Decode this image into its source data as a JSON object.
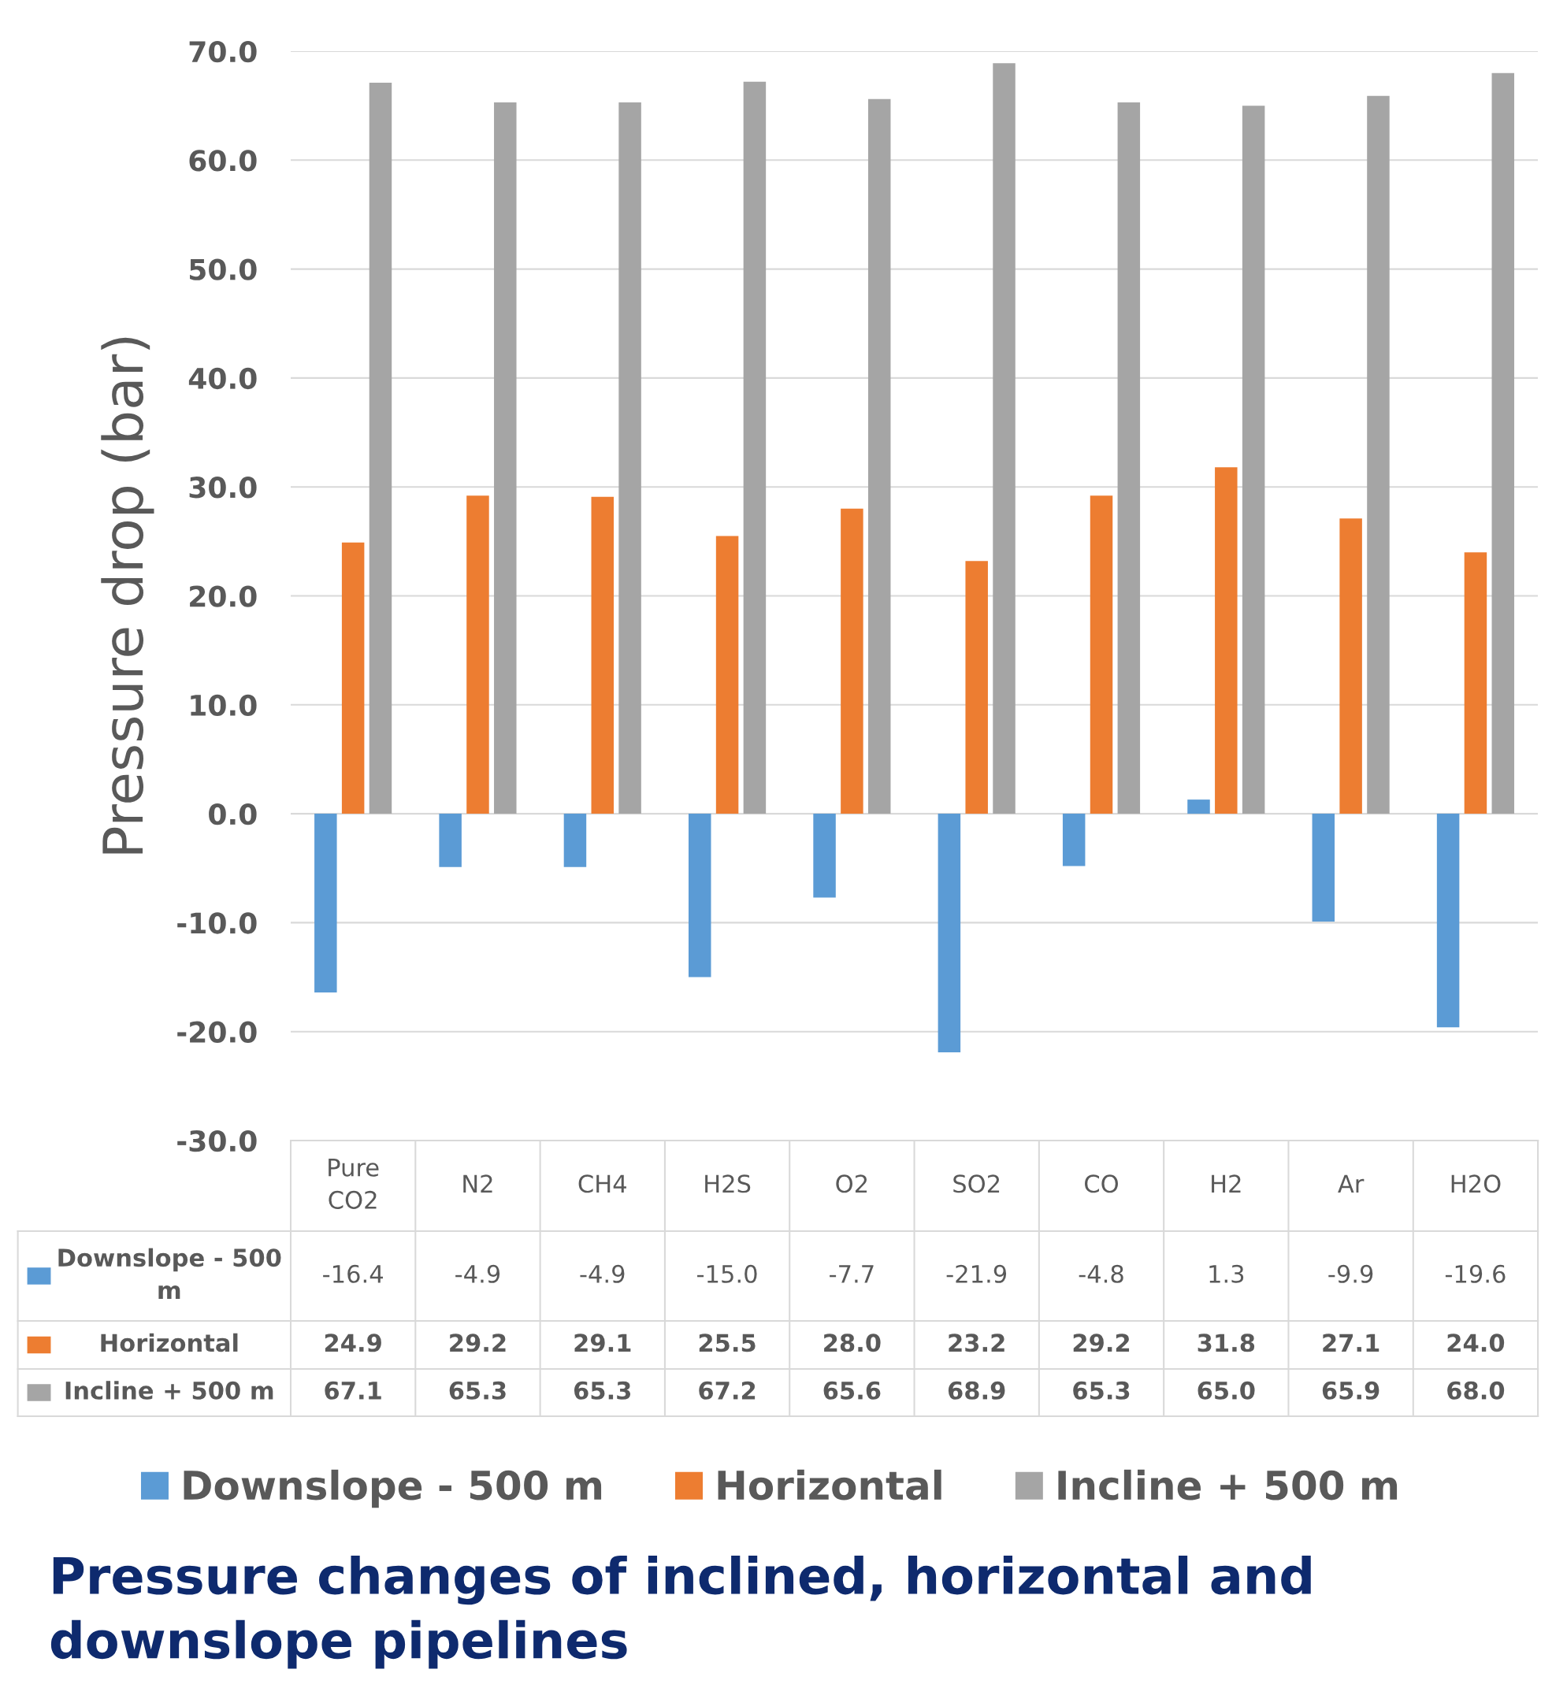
{
  "chart_data": {
    "type": "bar",
    "title": "Pressure changes of inclined, horizontal and downslope pipelines",
    "ylabel": "Pressure drop (bar)",
    "categories": [
      "Pure CO2",
      "N2",
      "CH4",
      "H2S",
      "O2",
      "SO2",
      "CO",
      "H2",
      "Ar",
      "H2O"
    ],
    "series": [
      {
        "name": "Downslope - 500 m",
        "color": "#5b9bd5",
        "values": [
          -16.4,
          -4.9,
          -4.9,
          -15.0,
          -7.7,
          -21.9,
          -4.8,
          1.3,
          -9.9,
          -19.6
        ],
        "value_labels": [
          "-16.4",
          "-4.9",
          "-4.9",
          "-15.0",
          "-7.7",
          "-21.9",
          "-4.8",
          "1.3",
          "-9.9",
          "-19.6"
        ]
      },
      {
        "name": "Horizontal",
        "color": "#ed7d31",
        "values": [
          24.9,
          29.2,
          29.1,
          25.5,
          28.0,
          23.2,
          29.2,
          31.8,
          27.1,
          24.0
        ],
        "value_labels": [
          "24.9",
          "29.2",
          "29.1",
          "25.5",
          "28.0",
          "23.2",
          "29.2",
          "31.8",
          "27.1",
          "24.0"
        ]
      },
      {
        "name": "Incline + 500 m",
        "color": "#a5a5a5",
        "values": [
          67.1,
          65.3,
          65.3,
          67.2,
          65.6,
          68.9,
          65.3,
          65.0,
          65.9,
          68.0
        ],
        "value_labels": [
          "67.1",
          "65.3",
          "65.3",
          "67.2",
          "65.6",
          "68.9",
          "65.3",
          "65.0",
          "65.9",
          "68.0"
        ]
      }
    ],
    "ylim": [
      -30,
      70
    ],
    "yticks": [
      {
        "value": -30,
        "label": "-30.0"
      },
      {
        "value": -20,
        "label": "-20.0"
      },
      {
        "value": -10,
        "label": "-10.0"
      },
      {
        "value": 0,
        "label": "0.0"
      },
      {
        "value": 10,
        "label": "10.0"
      },
      {
        "value": 20,
        "label": "20.0"
      },
      {
        "value": 30,
        "label": "30.0"
      },
      {
        "value": 40,
        "label": "40.0"
      },
      {
        "value": 50,
        "label": "50.0"
      },
      {
        "value": 60,
        "label": "60.0"
      },
      {
        "value": 70,
        "label": "70.0"
      }
    ],
    "grid": "y",
    "legend": "bottom"
  }
}
